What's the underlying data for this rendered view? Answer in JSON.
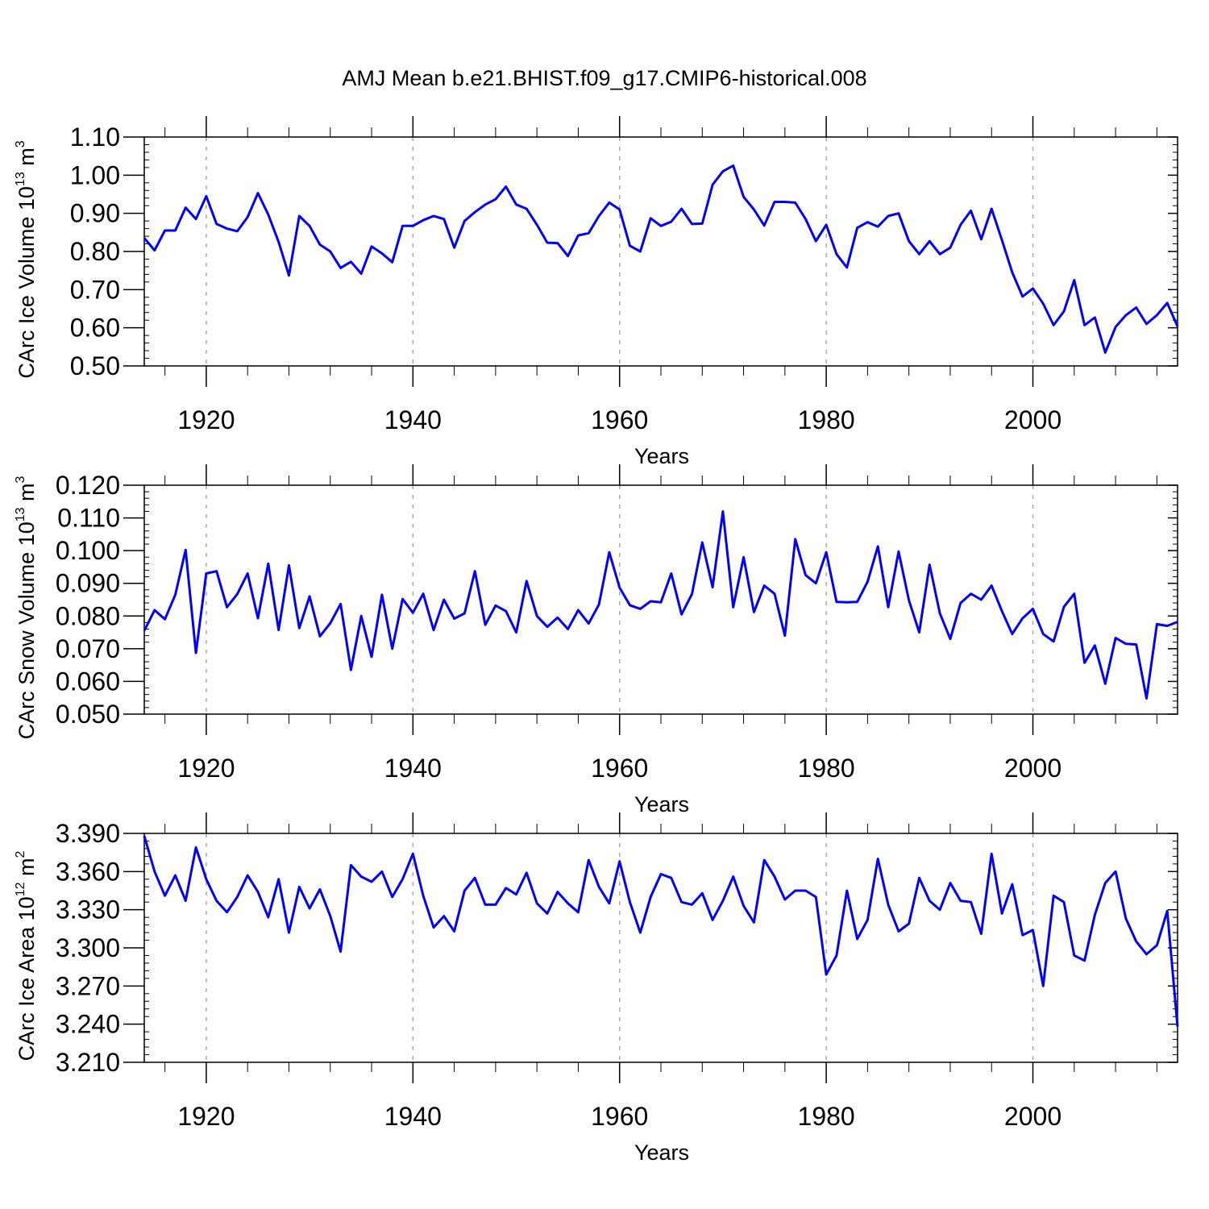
{
  "title": "AMJ Mean b.e21.BHIST.f09_g17.CMIP6-historical.008",
  "colors": {
    "line": "#0000ff",
    "axis": "#000000",
    "grid": "#aaaaaa"
  },
  "chart_data": [
    {
      "type": "line",
      "name": "ice-volume",
      "ylabel": {
        "main": "CArc Ice Volume 10",
        "exp": "13",
        "unit": " m",
        "unit_exp": "3"
      },
      "xlabel": "Years",
      "xlim": [
        1914,
        2014
      ],
      "ylim": [
        0.5,
        1.1
      ],
      "x_major_ticks": [
        1920,
        1940,
        1960,
        1980,
        2000
      ],
      "x_tick_labels": [
        "1920",
        "1940",
        "1960",
        "1980",
        "2000"
      ],
      "y_ticks": [
        0.5,
        0.6,
        0.7,
        0.8,
        0.9,
        1.0,
        1.1
      ],
      "y_tick_labels": [
        "0.50",
        "0.60",
        "0.70",
        "0.80",
        "0.90",
        "1.00",
        "1.10"
      ],
      "x_start": 1914,
      "values": [
        0.835,
        0.803,
        0.855,
        0.855,
        0.915,
        0.885,
        0.945,
        0.872,
        0.86,
        0.853,
        0.89,
        0.953,
        0.897,
        0.825,
        0.737,
        0.893,
        0.867,
        0.818,
        0.8,
        0.757,
        0.773,
        0.742,
        0.813,
        0.795,
        0.772,
        0.867,
        0.867,
        0.882,
        0.893,
        0.885,
        0.81,
        0.88,
        0.903,
        0.923,
        0.937,
        0.97,
        0.923,
        0.912,
        0.87,
        0.823,
        0.822,
        0.788,
        0.842,
        0.848,
        0.893,
        0.928,
        0.91,
        0.815,
        0.8,
        0.887,
        0.867,
        0.878,
        0.912,
        0.872,
        0.873,
        0.975,
        1.01,
        1.025,
        0.943,
        0.91,
        0.868,
        0.93,
        0.93,
        0.928,
        0.885,
        0.827,
        0.87,
        0.793,
        0.758,
        0.862,
        0.877,
        0.865,
        0.893,
        0.9,
        0.827,
        0.793,
        0.827,
        0.793,
        0.81,
        0.87,
        0.907,
        0.832,
        0.912,
        0.83,
        0.745,
        0.682,
        0.703,
        0.663,
        0.607,
        0.643,
        0.725,
        0.607,
        0.627,
        0.535,
        0.602,
        0.633,
        0.653,
        0.61,
        0.633,
        0.665,
        0.603
      ]
    },
    {
      "type": "line",
      "name": "snow-volume",
      "ylabel": {
        "main": "CArc Snow Volume 10",
        "exp": "13",
        "unit": " m",
        "unit_exp": "3"
      },
      "xlabel": "Years",
      "xlim": [
        1914,
        2014
      ],
      "ylim": [
        0.05,
        0.12
      ],
      "x_major_ticks": [
        1920,
        1940,
        1960,
        1980,
        2000
      ],
      "x_tick_labels": [
        "1920",
        "1940",
        "1960",
        "1980",
        "2000"
      ],
      "y_ticks": [
        0.05,
        0.06,
        0.07,
        0.08,
        0.09,
        0.1,
        0.11,
        0.12
      ],
      "y_tick_labels": [
        "0.050",
        "0.060",
        "0.070",
        "0.080",
        "0.090",
        "0.100",
        "0.110",
        "0.120"
      ],
      "x_start": 1914,
      "values": [
        0.0755,
        0.0818,
        0.079,
        0.0865,
        0.1002,
        0.0687,
        0.093,
        0.0937,
        0.0827,
        0.0867,
        0.093,
        0.0793,
        0.096,
        0.0757,
        0.0955,
        0.0763,
        0.086,
        0.0738,
        0.0778,
        0.0837,
        0.0635,
        0.08,
        0.0675,
        0.0865,
        0.07,
        0.0852,
        0.081,
        0.0868,
        0.0757,
        0.085,
        0.0792,
        0.0808,
        0.0937,
        0.0773,
        0.0832,
        0.0815,
        0.075,
        0.0907,
        0.08,
        0.0767,
        0.0795,
        0.076,
        0.0818,
        0.0777,
        0.0835,
        0.0995,
        0.0887,
        0.0833,
        0.0822,
        0.0845,
        0.0842,
        0.093,
        0.0805,
        0.0867,
        0.1025,
        0.0888,
        0.112,
        0.0827,
        0.098,
        0.0812,
        0.0893,
        0.0868,
        0.074,
        0.1035,
        0.0925,
        0.09,
        0.0995,
        0.0843,
        0.0842,
        0.0843,
        0.0905,
        0.1013,
        0.0827,
        0.0997,
        0.0848,
        0.075,
        0.0957,
        0.0808,
        0.073,
        0.084,
        0.0868,
        0.085,
        0.0893,
        0.0815,
        0.0745,
        0.0793,
        0.0822,
        0.0745,
        0.0722,
        0.0828,
        0.0868,
        0.0657,
        0.071,
        0.0593,
        0.0733,
        0.0715,
        0.0713,
        0.0548,
        0.0775,
        0.077,
        0.0782
      ]
    },
    {
      "type": "line",
      "name": "ice-area",
      "ylabel": {
        "main": "CArc Ice Area 10",
        "exp": "12",
        "unit": " m",
        "unit_exp": "2"
      },
      "xlabel": "Years",
      "xlim": [
        1914,
        2014
      ],
      "ylim": [
        3.21,
        3.39
      ],
      "x_major_ticks": [
        1920,
        1940,
        1960,
        1980,
        2000
      ],
      "x_tick_labels": [
        "1920",
        "1940",
        "1960",
        "1980",
        "2000"
      ],
      "y_ticks": [
        3.21,
        3.24,
        3.27,
        3.3,
        3.33,
        3.36,
        3.39
      ],
      "y_tick_labels": [
        "3.210",
        "3.240",
        "3.270",
        "3.300",
        "3.330",
        "3.360",
        "3.390"
      ],
      "x_start": 1914,
      "values": [
        3.388,
        3.36,
        3.341,
        3.357,
        3.337,
        3.379,
        3.354,
        3.337,
        3.328,
        3.34,
        3.357,
        3.344,
        3.324,
        3.354,
        3.312,
        3.348,
        3.331,
        3.346,
        3.325,
        3.297,
        3.365,
        3.356,
        3.352,
        3.36,
        3.34,
        3.354,
        3.374,
        3.341,
        3.316,
        3.325,
        3.313,
        3.345,
        3.355,
        3.334,
        3.334,
        3.347,
        3.342,
        3.359,
        3.335,
        3.327,
        3.344,
        3.335,
        3.328,
        3.369,
        3.348,
        3.335,
        3.368,
        3.336,
        3.312,
        3.34,
        3.358,
        3.355,
        3.336,
        3.334,
        3.343,
        3.322,
        3.337,
        3.356,
        3.333,
        3.32,
        3.369,
        3.356,
        3.338,
        3.345,
        3.345,
        3.34,
        3.279,
        3.294,
        3.345,
        3.307,
        3.322,
        3.37,
        3.334,
        3.313,
        3.319,
        3.355,
        3.337,
        3.33,
        3.351,
        3.337,
        3.336,
        3.311,
        3.374,
        3.327,
        3.35,
        3.31,
        3.314,
        3.27,
        3.341,
        3.336,
        3.294,
        3.29,
        3.326,
        3.351,
        3.36,
        3.323,
        3.305,
        3.295,
        3.302,
        3.329,
        3.238
      ]
    }
  ]
}
